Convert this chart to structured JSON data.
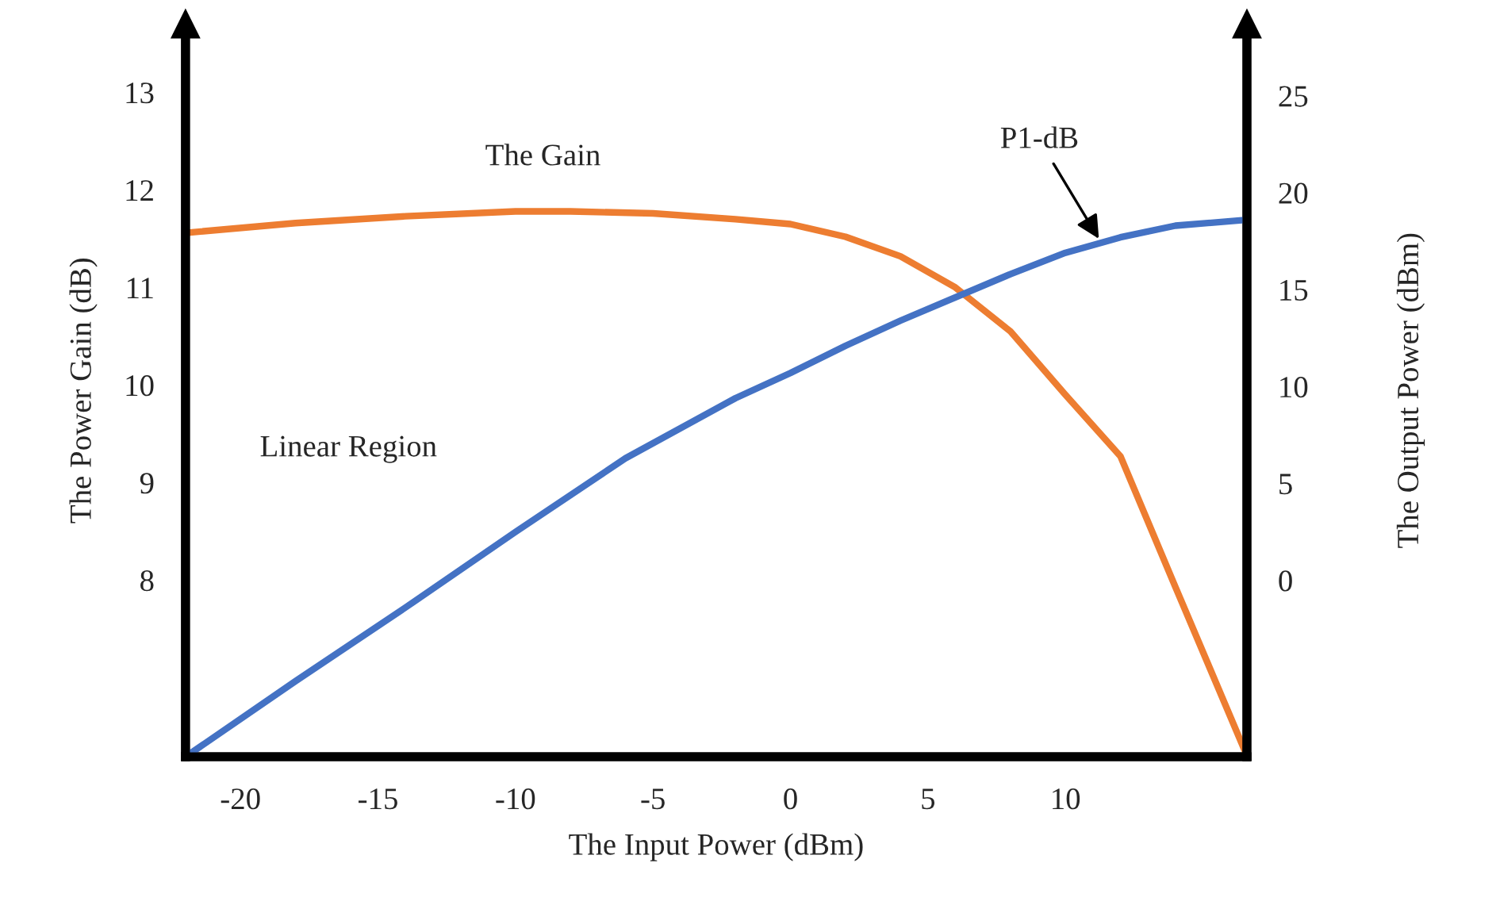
{
  "chart_data": {
    "type": "line",
    "xlabel": "The Input Power (dBm)",
    "ylabel": "The Power Gain (dB)",
    "y2label": "The Output Power (dBm)",
    "xlim": [
      -22,
      16.6
    ],
    "xticks": [
      -20,
      -15,
      -10,
      -5,
      0,
      5,
      10
    ],
    "ylim": [
      6.19,
      13.7
    ],
    "yticks": [
      8,
      9,
      10,
      11,
      12,
      13
    ],
    "y2lim": [
      -9.1,
      28.7
    ],
    "y2ticks": [
      0,
      5,
      10,
      15,
      20,
      25
    ],
    "grid": false,
    "marker": "none",
    "line_style": "solid",
    "series": [
      {
        "color": "#ed7d31",
        "x": [
          -22,
          -18,
          -14,
          -10,
          -8,
          -5,
          -2,
          0,
          2,
          4,
          6,
          8,
          10,
          12,
          14,
          16.6
        ],
        "values": [
          11.56,
          11.66,
          11.73,
          11.78,
          11.78,
          11.76,
          11.7,
          11.65,
          11.52,
          11.32,
          11.0,
          10.55,
          9.9,
          9.27,
          7.93,
          6.2
        ]
      },
      {
        "color": "#4472c4",
        "axis": "y2",
        "x": [
          -22,
          -18,
          -14,
          -10,
          -6,
          -2,
          0,
          2,
          4,
          6,
          8,
          10,
          12,
          14,
          16.6
        ],
        "values": [
          -9.1,
          -5.2,
          -1.4,
          2.5,
          6.3,
          9.4,
          10.7,
          12.1,
          13.4,
          14.6,
          15.8,
          16.9,
          17.7,
          18.3,
          18.6
        ]
      }
    ],
    "annotations": [
      {
        "text": "The Gain",
        "x": -9,
        "y": 11.78
      },
      "Linear Region",
      {
        "text": "P1-dB",
        "x": 11.3,
        "y": 11.46
      }
    ]
  }
}
